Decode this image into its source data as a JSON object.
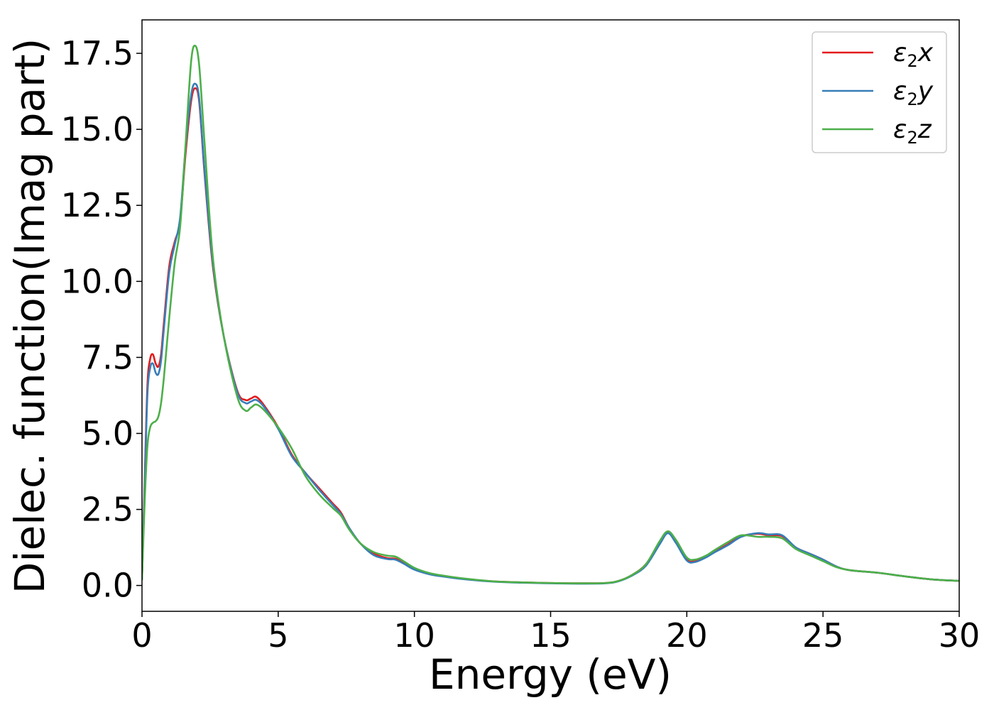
{
  "chart_data": {
    "type": "line",
    "title": "",
    "xlabel": "Energy (eV)",
    "ylabel": "Dielec. function(Imag part)",
    "xlim": [
      0,
      30
    ],
    "ylim": [
      -0.85,
      18.6
    ],
    "xticks": [
      0,
      5,
      10,
      15,
      20,
      25,
      30
    ],
    "xtick_labels": [
      "0",
      "5",
      "10",
      "15",
      "20",
      "25",
      "30"
    ],
    "yticks": [
      0.0,
      2.5,
      5.0,
      7.5,
      10.0,
      12.5,
      15.0,
      17.5
    ],
    "ytick_labels": [
      "0.0",
      "2.5",
      "5.0",
      "7.5",
      "10.0",
      "12.5",
      "15.0",
      "17.5"
    ],
    "grid": false,
    "legend_position": "top-right",
    "series": [
      {
        "name": "ε2x",
        "label_base": "ε",
        "label_sub": "2",
        "label_suffix": "x",
        "color": "#e41a1c",
        "x": [
          0,
          0.1,
          0.2,
          0.3,
          0.4,
          0.5,
          0.6,
          0.7,
          0.8,
          1.0,
          1.2,
          1.4,
          1.6,
          1.8,
          1.95,
          2.1,
          2.3,
          2.6,
          3.0,
          3.5,
          3.8,
          4.0,
          4.2,
          4.5,
          5.0,
          5.5,
          6.0,
          6.5,
          7.0,
          7.3,
          7.6,
          8.0,
          8.5,
          9.0,
          9.3,
          9.6,
          10.0,
          10.5,
          11.0,
          12.0,
          13.0,
          14.0,
          15.0,
          16.0,
          17.0,
          17.5,
          18.0,
          18.5,
          19.0,
          19.3,
          19.6,
          20.0,
          20.3,
          20.7,
          21.0,
          21.5,
          22.0,
          22.6,
          23.0,
          23.5,
          24.0,
          24.5,
          25.0,
          25.5,
          26.0,
          27.0,
          28.0,
          29.0,
          30.0
        ],
        "y": [
          0.2,
          3.5,
          6.6,
          7.45,
          7.6,
          7.3,
          7.2,
          7.6,
          8.6,
          10.5,
          11.3,
          12.0,
          14.2,
          15.9,
          16.35,
          15.9,
          13.5,
          10.5,
          8.2,
          6.4,
          6.1,
          6.15,
          6.2,
          5.9,
          5.2,
          4.3,
          3.7,
          3.2,
          2.7,
          2.4,
          1.9,
          1.4,
          1.05,
          0.9,
          0.88,
          0.75,
          0.55,
          0.4,
          0.32,
          0.2,
          0.13,
          0.1,
          0.08,
          0.07,
          0.08,
          0.15,
          0.35,
          0.7,
          1.4,
          1.75,
          1.45,
          0.85,
          0.8,
          0.95,
          1.1,
          1.35,
          1.62,
          1.7,
          1.65,
          1.62,
          1.25,
          1.05,
          0.85,
          0.62,
          0.5,
          0.42,
          0.3,
          0.2,
          0.15
        ]
      },
      {
        "name": "ε2y",
        "label_base": "ε",
        "label_sub": "2",
        "label_suffix": "y",
        "color": "#377eb8",
        "x": [
          0,
          0.1,
          0.2,
          0.3,
          0.4,
          0.5,
          0.6,
          0.7,
          0.8,
          1.0,
          1.2,
          1.4,
          1.6,
          1.8,
          1.95,
          2.1,
          2.3,
          2.6,
          3.0,
          3.5,
          3.8,
          4.0,
          4.2,
          4.5,
          5.0,
          5.5,
          6.0,
          6.5,
          7.0,
          7.3,
          7.6,
          8.0,
          8.5,
          9.0,
          9.3,
          9.6,
          10.0,
          10.5,
          11.0,
          12.0,
          13.0,
          14.0,
          15.0,
          16.0,
          17.0,
          17.5,
          18.0,
          18.5,
          19.0,
          19.3,
          19.6,
          20.0,
          20.3,
          20.7,
          21.0,
          21.5,
          22.0,
          22.6,
          23.0,
          23.5,
          24.0,
          24.5,
          25.0,
          25.5,
          26.0,
          27.0,
          28.0,
          29.0,
          30.0
        ],
        "y": [
          0.2,
          3.3,
          6.3,
          7.15,
          7.3,
          7.0,
          6.95,
          7.4,
          8.4,
          10.3,
          11.2,
          12.1,
          14.4,
          16.1,
          16.5,
          16.0,
          13.6,
          10.6,
          8.2,
          6.35,
          6.0,
          6.05,
          6.1,
          5.85,
          5.15,
          4.25,
          3.7,
          3.15,
          2.65,
          2.35,
          1.9,
          1.4,
          1.0,
          0.87,
          0.85,
          0.72,
          0.52,
          0.38,
          0.3,
          0.19,
          0.12,
          0.09,
          0.07,
          0.06,
          0.07,
          0.14,
          0.33,
          0.65,
          1.35,
          1.72,
          1.4,
          0.82,
          0.77,
          0.92,
          1.08,
          1.32,
          1.6,
          1.72,
          1.68,
          1.65,
          1.25,
          1.05,
          0.85,
          0.62,
          0.5,
          0.42,
          0.3,
          0.2,
          0.15
        ]
      },
      {
        "name": "ε2z",
        "label_base": "ε",
        "label_sub": "2",
        "label_suffix": "z",
        "color": "#4daf4a",
        "x": [
          0,
          0.1,
          0.2,
          0.3,
          0.4,
          0.5,
          0.6,
          0.7,
          0.8,
          0.9,
          1.0,
          1.2,
          1.4,
          1.6,
          1.8,
          1.95,
          2.1,
          2.3,
          2.6,
          3.0,
          3.5,
          3.8,
          4.0,
          4.2,
          4.5,
          5.0,
          5.5,
          6.0,
          6.5,
          7.0,
          7.3,
          7.6,
          8.0,
          8.5,
          9.0,
          9.3,
          9.6,
          10.0,
          10.5,
          11.0,
          12.0,
          13.0,
          14.0,
          15.0,
          16.0,
          17.0,
          17.5,
          18.0,
          18.5,
          19.0,
          19.3,
          19.6,
          20.0,
          20.3,
          20.7,
          21.0,
          21.5,
          22.0,
          22.6,
          23.0,
          23.5,
          24.0,
          24.5,
          25.0,
          25.5,
          26.0,
          27.0,
          28.0,
          29.0,
          30.0
        ],
        "y": [
          0.2,
          2.8,
          4.6,
          5.2,
          5.35,
          5.4,
          5.55,
          6.0,
          6.8,
          7.8,
          8.8,
          10.6,
          11.8,
          14.5,
          17.2,
          17.75,
          17.1,
          14.5,
          10.8,
          8.2,
          6.2,
          5.75,
          5.85,
          5.95,
          5.75,
          5.2,
          4.5,
          3.6,
          3.0,
          2.55,
          2.3,
          1.85,
          1.4,
          1.1,
          0.98,
          0.95,
          0.8,
          0.58,
          0.42,
          0.33,
          0.21,
          0.13,
          0.1,
          0.08,
          0.07,
          0.08,
          0.15,
          0.35,
          0.7,
          1.45,
          1.78,
          1.5,
          0.92,
          0.85,
          0.98,
          1.15,
          1.42,
          1.65,
          1.6,
          1.6,
          1.55,
          1.2,
          1.0,
          0.8,
          0.6,
          0.5,
          0.42,
          0.3,
          0.2,
          0.15
        ]
      }
    ]
  }
}
